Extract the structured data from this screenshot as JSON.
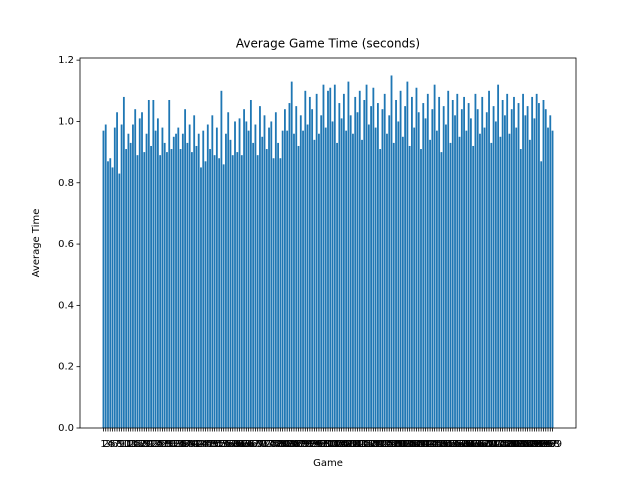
{
  "chart_data": {
    "type": "bar",
    "title": "Average Game Time (seconds)",
    "x_label": "Game",
    "y_label": "Average Time",
    "color": "#1f77b4",
    "categories": [
      "1",
      "2",
      "3",
      "4",
      "5",
      "6",
      "7",
      "8",
      "9",
      "10",
      "11",
      "12",
      "13",
      "14",
      "15",
      "16",
      "17",
      "18",
      "19",
      "20",
      "21",
      "22",
      "23",
      "24",
      "25",
      "26",
      "27",
      "28",
      "29",
      "30",
      "31",
      "32",
      "33",
      "34",
      "35",
      "36",
      "37",
      "38",
      "39",
      "40",
      "41",
      "42",
      "43",
      "44",
      "45",
      "46",
      "47",
      "48",
      "49",
      "50",
      "51",
      "52",
      "53",
      "54",
      "55",
      "56",
      "57",
      "58",
      "59",
      "60",
      "61",
      "62",
      "63",
      "64",
      "65",
      "66",
      "67",
      "68",
      "69",
      "70",
      "71",
      "72",
      "73",
      "74",
      "75",
      "76",
      "77",
      "78",
      "79",
      "80",
      "81",
      "82",
      "83",
      "84",
      "85",
      "86",
      "87",
      "88",
      "89",
      "90",
      "91",
      "92",
      "93",
      "94",
      "95",
      "96",
      "97",
      "98",
      "99",
      "100",
      "101",
      "102",
      "103",
      "104",
      "105",
      "106",
      "107",
      "108",
      "109",
      "110",
      "111",
      "112",
      "113",
      "114",
      "115",
      "116",
      "117",
      "118",
      "119",
      "120",
      "121",
      "122",
      "123",
      "124",
      "125",
      "126",
      "127",
      "128",
      "129",
      "130",
      "131",
      "132",
      "133",
      "134",
      "135",
      "136",
      "137",
      "138",
      "139",
      "140",
      "141",
      "142",
      "143",
      "144",
      "145",
      "146",
      "147",
      "148",
      "149",
      "150",
      "151",
      "152",
      "153",
      "154",
      "155",
      "156",
      "157",
      "158",
      "159",
      "160",
      "161",
      "162",
      "163",
      "164",
      "165",
      "166",
      "167",
      "168",
      "169",
      "170",
      "171",
      "172",
      "173",
      "174",
      "175",
      "176",
      "177",
      "178",
      "179",
      "180",
      "181",
      "182",
      "183",
      "184",
      "185",
      "186",
      "187",
      "188",
      "189",
      "190",
      "191",
      "192",
      "193",
      "194",
      "195",
      "196",
      "197",
      "198",
      "199"
    ],
    "values": [
      0.97,
      0.99,
      0.87,
      0.88,
      0.85,
      0.98,
      1.03,
      0.83,
      0.99,
      1.08,
      0.91,
      0.96,
      0.93,
      0.99,
      1.04,
      0.89,
      1.01,
      1.03,
      0.9,
      0.96,
      1.07,
      0.92,
      1.07,
      0.97,
      1.01,
      0.89,
      0.98,
      0.93,
      0.9,
      1.07,
      0.91,
      0.95,
      0.96,
      0.98,
      0.91,
      0.96,
      1.04,
      0.93,
      0.99,
      0.9,
      1.02,
      0.92,
      0.96,
      0.85,
      0.97,
      0.87,
      0.99,
      0.91,
      1.02,
      0.89,
      0.98,
      0.88,
      1.1,
      0.86,
      0.96,
      1.03,
      0.94,
      0.89,
      1.0,
      0.9,
      1.01,
      0.89,
      1.04,
      1.0,
      0.97,
      1.07,
      0.93,
      0.99,
      0.89,
      1.05,
      0.95,
      1.02,
      0.91,
      0.98,
      1.0,
      0.88,
      1.03,
      0.93,
      0.88,
      0.97,
      1.04,
      0.97,
      1.06,
      1.13,
      0.96,
      1.05,
      0.92,
      1.02,
      0.97,
      1.1,
      0.99,
      1.08,
      1.04,
      0.94,
      1.09,
      0.96,
      1.02,
      1.12,
      0.98,
      1.1,
      1.11,
      1.0,
      1.12,
      0.93,
      1.06,
      1.01,
      1.09,
      0.97,
      1.13,
      1.02,
      0.96,
      1.08,
      1.03,
      1.1,
      0.94,
      1.07,
      1.12,
      0.99,
      1.05,
      1.11,
      0.98,
      1.06,
      0.91,
      1.04,
      1.09,
      0.96,
      1.02,
      1.15,
      0.93,
      1.07,
      1.0,
      1.1,
      0.95,
      1.05,
      1.13,
      0.92,
      1.08,
      0.98,
      1.11,
      1.03,
      0.91,
      1.06,
      1.01,
      1.09,
      0.94,
      1.04,
      1.12,
      0.97,
      1.08,
      0.9,
      1.05,
      0.99,
      1.1,
      0.93,
      1.07,
      1.02,
      1.09,
      0.95,
      1.04,
      1.08,
      0.97,
      1.06,
      1.01,
      0.92,
      1.09,
      1.04,
      0.96,
      1.08,
      0.98,
      1.03,
      1.1,
      0.93,
      1.05,
      1.0,
      1.12,
      0.95,
      1.07,
      1.02,
      1.09,
      0.96,
      1.04,
      1.08,
      0.98,
      1.06,
      0.91,
      1.09,
      1.02,
      1.05,
      0.94,
      1.08,
      1.01,
      1.09,
      1.06,
      0.87,
      1.07,
      1.04,
      0.98,
      1.02,
      0.97
    ],
    "ylim": [
      0,
      1.207
    ],
    "yticks": [
      {
        "value": 0,
        "label": "0.0"
      },
      0.2,
      0.4,
      0.6,
      0.8,
      {
        "value": 1,
        "label": "1.0"
      },
      1.2
    ]
  }
}
